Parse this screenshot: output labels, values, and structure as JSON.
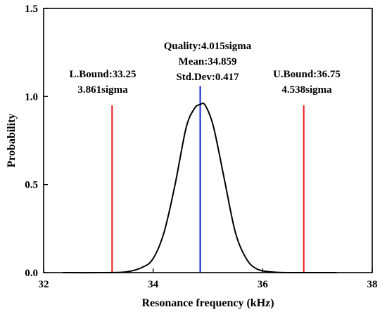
{
  "chart_data": {
    "type": "line",
    "xlabel": "Resonance frequency (kHz)",
    "ylabel": "Probability",
    "xlim": [
      32,
      38
    ],
    "ylim": [
      0,
      1.5
    ],
    "xticks": [
      32,
      34,
      36,
      38
    ],
    "yticks": [
      0.0,
      0.5,
      1.0,
      1.5
    ],
    "xtick_labels": [
      "32",
      "34",
      "36",
      "38"
    ],
    "ytick_labels": [
      "0.0",
      "0.5",
      "1.0",
      "1.5"
    ],
    "grid": false,
    "series": [
      {
        "color": "#000000",
        "x": [
          32.35,
          33.0,
          33.5,
          33.8,
          34.0,
          34.2,
          34.4,
          34.6,
          34.75,
          34.859,
          34.95,
          35.1,
          35.3,
          35.5,
          35.7,
          35.9,
          36.2,
          36.6,
          37.35
        ],
        "y": [
          0.0,
          0.0,
          0.004,
          0.03,
          0.08,
          0.23,
          0.5,
          0.82,
          0.93,
          0.955,
          0.95,
          0.83,
          0.53,
          0.23,
          0.08,
          0.02,
          0.003,
          0.0,
          0.0
        ]
      }
    ],
    "vlines": [
      {
        "x": 33.25,
        "ymax": 0.95,
        "color": "#e8191c"
      },
      {
        "x": 34.859,
        "ymax": 1.06,
        "color": "#0a1fd6"
      },
      {
        "x": 36.75,
        "ymax": 0.95,
        "color": "#e8191c"
      }
    ],
    "annotations": [
      {
        "lines": [
          "Quality:4.015sigma",
          "Mean:34.859",
          "Std.Dev:0.417"
        ]
      },
      {
        "lines": [
          "L.Bound:33.25",
          "3.861sigma"
        ]
      },
      {
        "lines": [
          "U.Bound:36.75",
          "4.538sigma"
        ]
      }
    ]
  }
}
